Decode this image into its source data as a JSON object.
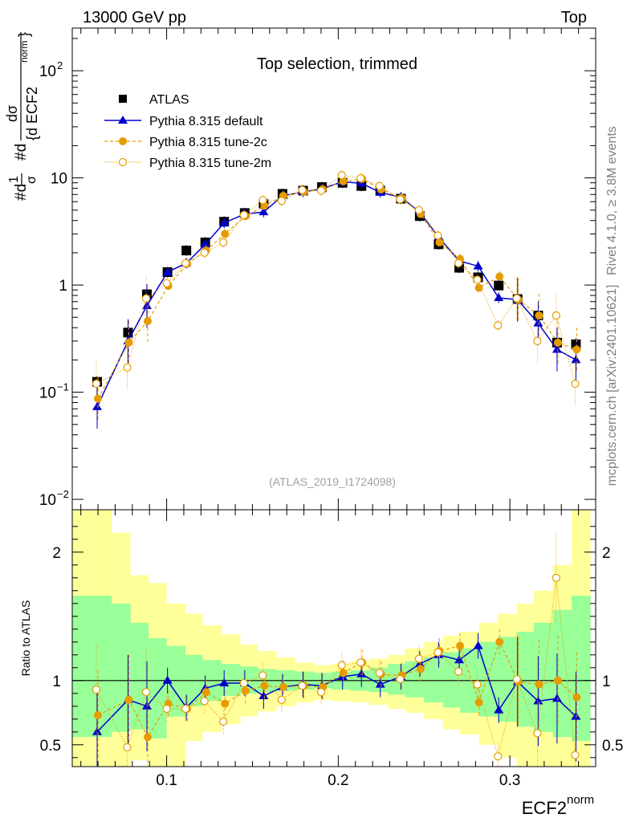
{
  "header": {
    "left": "13000 GeV pp",
    "right": "Top"
  },
  "side_labels": {
    "rivet": "Rivet 4.1.0, ≥ 3.8M events",
    "mcplots": "mcplots.cern.ch [arXiv:2401.10621]"
  },
  "colors": {
    "atlas": "#000000",
    "default": "#0000cc",
    "tune2c": "#e69c00",
    "tune2m": "#e69c00",
    "band_green": "#99ff99",
    "band_yellow": "#ffff99"
  },
  "chart_data": [
    {
      "type": "scatter",
      "subtype": "log-y",
      "title": "Top selection, trimmed",
      "analysis_tag": "(ATLAS_2019_I1724098)",
      "ylabel": "#d1/σ #d dσ/{d ECF2^norm}",
      "ylabel_parts": {
        "a": "#d",
        "b": "1",
        "c": "σ",
        "d": "#d",
        "e": "dσ",
        "f": "{d ECF2",
        "g": "norm",
        "h": "}"
      },
      "xlim": [
        0.045,
        0.35
      ],
      "ylim": [
        0.008,
        250
      ],
      "yticks": [
        {
          "value": 0.01,
          "base": "10",
          "exp": "−2"
        },
        {
          "value": 0.1,
          "base": "10",
          "exp": "−1"
        },
        {
          "value": 1,
          "base": "1",
          "exp": ""
        },
        {
          "value": 10,
          "base": "10",
          "exp": ""
        },
        {
          "value": 100,
          "base": "10",
          "exp": "2"
        }
      ],
      "x": [
        0.0595,
        0.0775,
        0.0885,
        0.1005,
        0.1115,
        0.1225,
        0.1335,
        0.1455,
        0.1565,
        0.1675,
        0.1795,
        0.1905,
        0.2025,
        0.2135,
        0.2245,
        0.2365,
        0.2475,
        0.2585,
        0.2705,
        0.2815,
        0.2935,
        0.3045,
        0.3165,
        0.3275,
        0.3385
      ],
      "legend": [
        {
          "label": "ATLAS",
          "marker": "square-black"
        },
        {
          "label": "Pythia 8.315 default",
          "marker": "triangle-blue-solid"
        },
        {
          "label": "Pythia 8.315 tune-2c",
          "marker": "circle-orange-dashed"
        },
        {
          "label": "Pythia 8.315 tune-2m",
          "marker": "open-circle-orange-dotted"
        }
      ],
      "series": [
        {
          "name": "ATLAS",
          "values": [
            0.125,
            0.36,
            0.82,
            1.32,
            2.1,
            2.5,
            3.9,
            4.7,
            5.7,
            7.1,
            7.6,
            8.2,
            9.0,
            8.4,
            7.6,
            6.4,
            4.4,
            2.4,
            1.45,
            1.18,
            0.99,
            0.74,
            0.52,
            0.29,
            0.28
          ]
        },
        {
          "name": "Pythia 8.315 default",
          "values": [
            0.073,
            0.3,
            0.64,
            1.32,
            1.6,
            2.4,
            3.8,
            4.6,
            4.8,
            6.8,
            7.4,
            7.9,
            9.2,
            8.9,
            7.3,
            6.6,
            4.8,
            2.8,
            1.68,
            1.5,
            0.76,
            0.73,
            0.44,
            0.25,
            0.2
          ]
        },
        {
          "name": "Pythia 8.315 tune-2c",
          "values": [
            0.087,
            0.29,
            0.46,
            0.98,
            1.58,
            2.1,
            3.0,
            4.4,
            5.5,
            6.8,
            7.4,
            7.8,
            9.3,
            9.8,
            7.8,
            6.5,
            4.6,
            2.5,
            1.75,
            0.94,
            1.2,
            0.73,
            0.52,
            0.29,
            0.25
          ]
        },
        {
          "name": "Pythia 8.315 tune-2m",
          "values": [
            0.12,
            0.17,
            0.75,
            1.04,
            1.6,
            2.0,
            2.5,
            4.5,
            6.2,
            6.1,
            7.7,
            7.6,
            10.6,
            9.9,
            8.4,
            6.3,
            5.0,
            2.9,
            1.6,
            1.12,
            0.42,
            0.75,
            0.3,
            0.52,
            0.12
          ]
        }
      ]
    },
    {
      "type": "scatter",
      "subtype": "ratio",
      "ylabel": "Ratio to ATLAS",
      "xlabel": "ECF2",
      "xlabel_sup": "norm",
      "xlim": [
        0.045,
        0.35
      ],
      "ylim": [
        0.33,
        2.33
      ],
      "xticks": [
        {
          "value": 0.1,
          "label": "0.1"
        },
        {
          "value": 0.2,
          "label": "0.2"
        },
        {
          "value": 0.3,
          "label": "0.3"
        }
      ],
      "yticks": [
        {
          "value": 0.5,
          "label": "0.5"
        },
        {
          "value": 1,
          "label": "1"
        },
        {
          "value": 2,
          "label": "2"
        }
      ],
      "reference_line": 1,
      "bin_edges": [
        0.045,
        0.057,
        0.068,
        0.079,
        0.0895,
        0.1,
        0.111,
        0.121,
        0.132,
        0.143,
        0.153,
        0.164,
        0.175,
        0.186,
        0.196,
        0.207,
        0.218,
        0.229,
        0.239,
        0.25,
        0.261,
        0.271,
        0.282,
        0.293,
        0.304,
        0.314,
        0.325,
        0.336,
        0.347
      ],
      "green_band": [
        [
          0.56,
          1.66
        ],
        [
          0.56,
          1.66
        ],
        [
          0.6,
          1.6
        ],
        [
          0.62,
          1.45
        ],
        [
          0.55,
          1.33
        ],
        [
          0.72,
          1.27
        ],
        [
          0.8,
          1.2
        ],
        [
          0.84,
          1.16
        ],
        [
          0.88,
          1.13
        ],
        [
          0.9,
          1.11
        ],
        [
          0.91,
          1.09
        ],
        [
          0.92,
          1.08
        ],
        [
          0.93,
          1.07
        ],
        [
          0.94,
          1.06
        ],
        [
          0.93,
          1.07
        ],
        [
          0.92,
          1.08
        ],
        [
          0.91,
          1.1
        ],
        [
          0.89,
          1.13
        ],
        [
          0.87,
          1.15
        ],
        [
          0.83,
          1.18
        ],
        [
          0.79,
          1.22
        ],
        [
          0.75,
          1.25
        ],
        [
          0.72,
          1.3
        ],
        [
          0.68,
          1.34
        ],
        [
          0.64,
          1.38
        ],
        [
          0.6,
          1.45
        ],
        [
          0.56,
          1.55
        ],
        [
          0.53,
          1.66
        ]
      ],
      "yellow_band": [
        [
          0.2,
          2.5
        ],
        [
          0.2,
          2.5
        ],
        [
          0.28,
          2.15
        ],
        [
          0.38,
          1.82
        ],
        [
          0.28,
          1.76
        ],
        [
          0.33,
          1.6
        ],
        [
          0.53,
          1.52
        ],
        [
          0.6,
          1.43
        ],
        [
          0.66,
          1.36
        ],
        [
          0.72,
          1.28
        ],
        [
          0.76,
          1.23
        ],
        [
          0.8,
          1.18
        ],
        [
          0.83,
          1.14
        ],
        [
          0.85,
          1.12
        ],
        [
          0.84,
          1.13
        ],
        [
          0.83,
          1.15
        ],
        [
          0.81,
          1.17
        ],
        [
          0.78,
          1.2
        ],
        [
          0.75,
          1.25
        ],
        [
          0.7,
          1.3
        ],
        [
          0.62,
          1.35
        ],
        [
          0.58,
          1.38
        ],
        [
          0.5,
          1.45
        ],
        [
          0.4,
          1.52
        ],
        [
          0.3,
          1.6
        ],
        [
          0.25,
          1.7
        ],
        [
          0.2,
          1.9
        ],
        [
          0.2,
          2.35
        ]
      ],
      "series": [
        {
          "name": "Pythia 8.315 default",
          "values": [
            0.6,
            0.85,
            0.8,
            1.0,
            0.79,
            0.94,
            0.98,
            0.98,
            0.88,
            0.95,
            0.97,
            0.96,
            1.03,
            1.05,
            0.97,
            1.03,
            1.13,
            1.2,
            1.16,
            1.27,
            0.77,
            0.99,
            0.84,
            0.86,
            0.72
          ]
        },
        {
          "name": "Pythia 8.315 tune-2c",
          "values": [
            0.73,
            0.85,
            0.56,
            0.82,
            0.78,
            0.91,
            0.82,
            0.92,
            0.96,
            0.95,
            0.96,
            0.95,
            1.06,
            1.14,
            1.05,
            1.04,
            1.09,
            1.23,
            1.27,
            0.83,
            1.3,
            0.99,
            0.97,
            1.0,
            0.87
          ]
        },
        {
          "name": "Pythia 8.315 tune-2m",
          "values": [
            0.93,
            0.48,
            0.91,
            0.78,
            0.78,
            0.84,
            0.68,
            0.98,
            1.04,
            0.85,
            0.96,
            0.91,
            1.12,
            1.14,
            1.06,
            1.01,
            1.17,
            1.22,
            1.07,
            0.97,
            0.41,
            1.01,
            0.59,
            1.8,
            0.42
          ]
        }
      ]
    }
  ]
}
